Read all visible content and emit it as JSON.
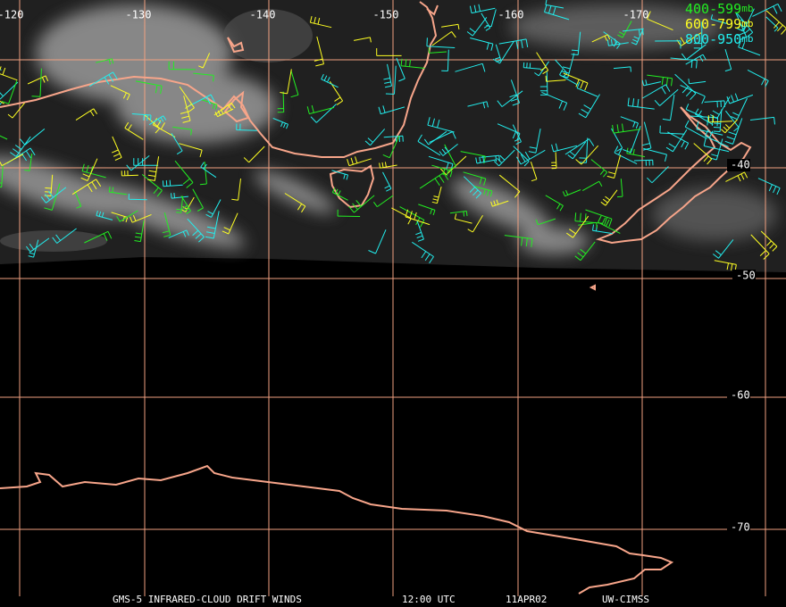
{
  "longitude_labels": [
    "-120",
    "-130",
    "-140",
    "-150",
    "-160",
    "-170"
  ],
  "latitude_labels": [
    "-40",
    "-50",
    "-60",
    "-70"
  ],
  "legend": [
    {
      "range": "400-599",
      "unit": "mb"
    },
    {
      "range": "600-799",
      "unit": "mb"
    },
    {
      "range": "800-950",
      "unit": "mb"
    }
  ],
  "footer": {
    "product": "GMS-5 INFRARED-CLOUD DRIFT WINDS",
    "time": "12:00 UTC",
    "date": "11APR02",
    "source": "UW-CIMSS"
  }
}
